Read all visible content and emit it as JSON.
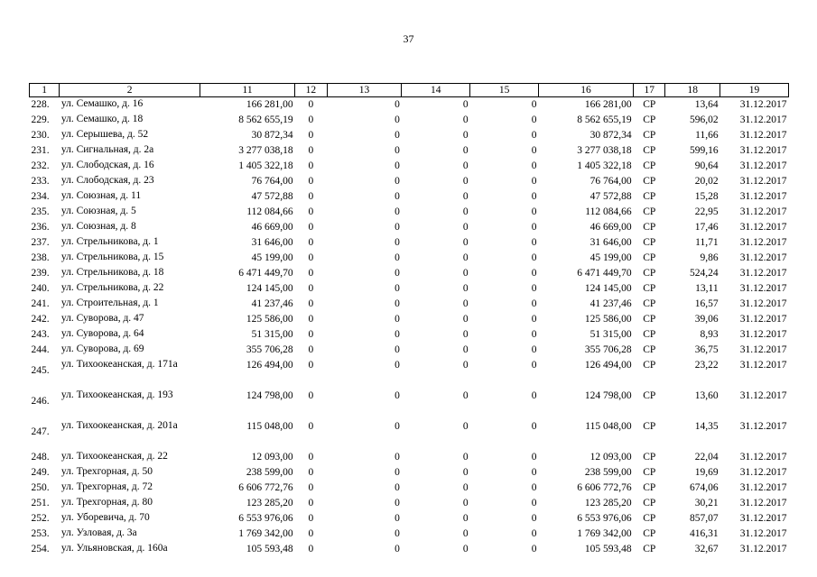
{
  "page_number": "37",
  "table": {
    "headers": [
      "1",
      "2",
      "11",
      "12",
      "13",
      "14",
      "15",
      "16",
      "17",
      "18",
      "19"
    ],
    "rows": [
      {
        "n": "228.",
        "addr": "ул. Семашко, д. 16",
        "c11": "166 281,00",
        "c12": "0",
        "c13": "0",
        "c14": "0",
        "c15": "0",
        "c16": "166 281,00",
        "c17": "СР",
        "c18": "13,64",
        "c19": "31.12.2017"
      },
      {
        "n": "229.",
        "addr": "ул. Семашко, д. 18",
        "c11": "8 562 655,19",
        "c12": "0",
        "c13": "0",
        "c14": "0",
        "c15": "0",
        "c16": "8 562 655,19",
        "c17": "СР",
        "c18": "596,02",
        "c19": "31.12.2017"
      },
      {
        "n": "230.",
        "addr": "ул. Серышева, д. 52",
        "c11": "30 872,34",
        "c12": "0",
        "c13": "0",
        "c14": "0",
        "c15": "0",
        "c16": "30 872,34",
        "c17": "СР",
        "c18": "11,66",
        "c19": "31.12.2017"
      },
      {
        "n": "231.",
        "addr": "ул. Сигнальная, д. 2а",
        "c11": "3 277 038,18",
        "c12": "0",
        "c13": "0",
        "c14": "0",
        "c15": "0",
        "c16": "3 277 038,18",
        "c17": "СР",
        "c18": "599,16",
        "c19": "31.12.2017"
      },
      {
        "n": "232.",
        "addr": "ул. Слободская, д. 16",
        "c11": "1 405 322,18",
        "c12": "0",
        "c13": "0",
        "c14": "0",
        "c15": "0",
        "c16": "1 405 322,18",
        "c17": "СР",
        "c18": "90,64",
        "c19": "31.12.2017"
      },
      {
        "n": "233.",
        "addr": "ул. Слободская, д. 23",
        "c11": "76 764,00",
        "c12": "0",
        "c13": "0",
        "c14": "0",
        "c15": "0",
        "c16": "76 764,00",
        "c17": "СР",
        "c18": "20,02",
        "c19": "31.12.2017"
      },
      {
        "n": "234.",
        "addr": "ул. Союзная, д. 11",
        "c11": "47 572,88",
        "c12": "0",
        "c13": "0",
        "c14": "0",
        "c15": "0",
        "c16": "47 572,88",
        "c17": "СР",
        "c18": "15,28",
        "c19": "31.12.2017"
      },
      {
        "n": "235.",
        "addr": "ул. Союзная, д. 5",
        "c11": "112 084,66",
        "c12": "0",
        "c13": "0",
        "c14": "0",
        "c15": "0",
        "c16": "112 084,66",
        "c17": "СР",
        "c18": "22,95",
        "c19": "31.12.2017"
      },
      {
        "n": "236.",
        "addr": "ул. Союзная, д. 8",
        "c11": "46 669,00",
        "c12": "0",
        "c13": "0",
        "c14": "0",
        "c15": "0",
        "c16": "46 669,00",
        "c17": "СР",
        "c18": "17,46",
        "c19": "31.12.2017"
      },
      {
        "n": "237.",
        "addr": "ул. Стрельникова, д. 1",
        "c11": "31 646,00",
        "c12": "0",
        "c13": "0",
        "c14": "0",
        "c15": "0",
        "c16": "31 646,00",
        "c17": "СР",
        "c18": "11,71",
        "c19": "31.12.2017"
      },
      {
        "n": "238.",
        "addr": "ул. Стрельникова, д. 15",
        "c11": "45 199,00",
        "c12": "0",
        "c13": "0",
        "c14": "0",
        "c15": "0",
        "c16": "45 199,00",
        "c17": "СР",
        "c18": "9,86",
        "c19": "31.12.2017"
      },
      {
        "n": "239.",
        "addr": "ул. Стрельникова, д. 18",
        "c11": "6 471 449,70",
        "c12": "0",
        "c13": "0",
        "c14": "0",
        "c15": "0",
        "c16": "6 471 449,70",
        "c17": "СР",
        "c18": "524,24",
        "c19": "31.12.2017"
      },
      {
        "n": "240.",
        "addr": "ул. Стрельникова, д. 22",
        "c11": "124 145,00",
        "c12": "0",
        "c13": "0",
        "c14": "0",
        "c15": "0",
        "c16": "124 145,00",
        "c17": "СР",
        "c18": "13,11",
        "c19": "31.12.2017"
      },
      {
        "n": "241.",
        "addr": "ул. Строительная, д. 1",
        "c11": "41 237,46",
        "c12": "0",
        "c13": "0",
        "c14": "0",
        "c15": "0",
        "c16": "41 237,46",
        "c17": "СР",
        "c18": "16,57",
        "c19": "31.12.2017"
      },
      {
        "n": "242.",
        "addr": "ул. Суворова, д. 47",
        "c11": "125 586,00",
        "c12": "0",
        "c13": "0",
        "c14": "0",
        "c15": "0",
        "c16": "125 586,00",
        "c17": "СР",
        "c18": "39,06",
        "c19": "31.12.2017"
      },
      {
        "n": "243.",
        "addr": "ул. Суворова, д. 64",
        "c11": "51 315,00",
        "c12": "0",
        "c13": "0",
        "c14": "0",
        "c15": "0",
        "c16": "51 315,00",
        "c17": "СР",
        "c18": "8,93",
        "c19": "31.12.2017"
      },
      {
        "n": "244.",
        "addr": "ул. Суворова, д. 69",
        "c11": "355 706,28",
        "c12": "0",
        "c13": "0",
        "c14": "0",
        "c15": "0",
        "c16": "355 706,28",
        "c17": "СР",
        "c18": "36,75",
        "c19": "31.12.2017"
      },
      {
        "n": "245.",
        "addr": "ул. Тихоокеанская, д. 171а",
        "c11": "126 494,00",
        "c12": "0",
        "c13": "0",
        "c14": "0",
        "c15": "0",
        "c16": "126 494,00",
        "c17": "СР",
        "c18": "23,22",
        "c19": "31.12.2017"
      },
      {
        "n": "246.",
        "addr": "ул. Тихоокеанская, д. 193",
        "c11": "124 798,00",
        "c12": "0",
        "c13": "0",
        "c14": "0",
        "c15": "0",
        "c16": "124 798,00",
        "c17": "СР",
        "c18": "13,60",
        "c19": "31.12.2017"
      },
      {
        "n": "247.",
        "addr": "ул. Тихоокеанская, д. 201а",
        "c11": "115 048,00",
        "c12": "0",
        "c13": "0",
        "c14": "0",
        "c15": "0",
        "c16": "115 048,00",
        "c17": "СР",
        "c18": "14,35",
        "c19": "31.12.2017"
      },
      {
        "n": "248.",
        "addr": "ул. Тихоокеанская, д. 22",
        "c11": "12 093,00",
        "c12": "0",
        "c13": "0",
        "c14": "0",
        "c15": "0",
        "c16": "12 093,00",
        "c17": "СР",
        "c18": "22,04",
        "c19": "31.12.2017"
      },
      {
        "n": "249.",
        "addr": "ул. Трехгорная, д. 50",
        "c11": "238 599,00",
        "c12": "0",
        "c13": "0",
        "c14": "0",
        "c15": "0",
        "c16": "238 599,00",
        "c17": "СР",
        "c18": "19,69",
        "c19": "31.12.2017"
      },
      {
        "n": "250.",
        "addr": "ул. Трехгорная, д. 72",
        "c11": "6 606 772,76",
        "c12": "0",
        "c13": "0",
        "c14": "0",
        "c15": "0",
        "c16": "6 606 772,76",
        "c17": "СР",
        "c18": "674,06",
        "c19": "31.12.2017"
      },
      {
        "n": "251.",
        "addr": "ул. Трехгорная, д. 80",
        "c11": "123 285,20",
        "c12": "0",
        "c13": "0",
        "c14": "0",
        "c15": "0",
        "c16": "123 285,20",
        "c17": "СР",
        "c18": "30,21",
        "c19": "31.12.2017"
      },
      {
        "n": "252.",
        "addr": "ул. Уборевича, д. 70",
        "c11": "6 553 976,06",
        "c12": "0",
        "c13": "0",
        "c14": "0",
        "c15": "0",
        "c16": "6 553 976,06",
        "c17": "СР",
        "c18": "857,07",
        "c19": "31.12.2017"
      },
      {
        "n": "253.",
        "addr": "ул. Узловая, д. 3а",
        "c11": "1 769 342,00",
        "c12": "0",
        "c13": "0",
        "c14": "0",
        "c15": "0",
        "c16": "1 769 342,00",
        "c17": "СР",
        "c18": "416,31",
        "c19": "31.12.2017"
      },
      {
        "n": "254.",
        "addr": "ул. Ульяновская, д. 160а",
        "c11": "105 593,48",
        "c12": "0",
        "c13": "0",
        "c14": "0",
        "c15": "0",
        "c16": "105 593,48",
        "c17": "СР",
        "c18": "32,67",
        "c19": "31.12.2017"
      }
    ]
  }
}
